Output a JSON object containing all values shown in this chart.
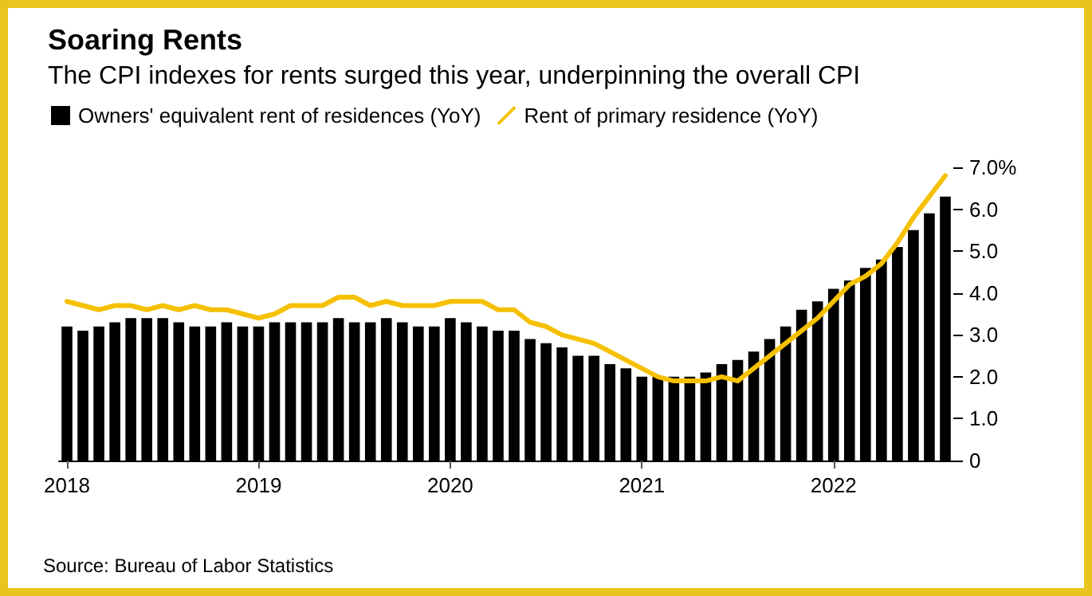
{
  "chart_data": {
    "type": "bar",
    "title": "Soaring Rents",
    "subtitle": "The CPI indexes for rents surged this year, underpinning the overall CPI",
    "categories": [
      "2018",
      null,
      null,
      null,
      null,
      null,
      null,
      null,
      null,
      null,
      null,
      null,
      "2019",
      null,
      null,
      null,
      null,
      null,
      null,
      null,
      null,
      null,
      null,
      null,
      "2020",
      null,
      null,
      null,
      null,
      null,
      null,
      null,
      null,
      null,
      null,
      null,
      "2021",
      null,
      null,
      null,
      null,
      null,
      null,
      null,
      null,
      null,
      null,
      null,
      "2022",
      null,
      null,
      null,
      null,
      null,
      null,
      null
    ],
    "series": [
      {
        "name": "Owners' equivalent rent of residences (YoY)",
        "color": "#000000",
        "values": [
          3.2,
          3.1,
          3.2,
          3.3,
          3.4,
          3.4,
          3.4,
          3.3,
          3.2,
          3.2,
          3.3,
          3.2,
          3.2,
          3.3,
          3.3,
          3.3,
          3.3,
          3.4,
          3.3,
          3.3,
          3.4,
          3.3,
          3.2,
          3.2,
          3.4,
          3.3,
          3.2,
          3.1,
          3.1,
          2.9,
          2.8,
          2.7,
          2.5,
          2.5,
          2.3,
          2.2,
          2.0,
          2.0,
          2.0,
          2.0,
          2.1,
          2.3,
          2.4,
          2.6,
          2.9,
          3.2,
          3.6,
          3.8,
          4.1,
          4.3,
          4.6,
          4.8,
          5.1,
          5.5,
          5.9,
          6.3
        ]
      },
      {
        "name": "Rent of primary residence (YoY)",
        "type": "line",
        "color": "#f5c000",
        "marker": "none",
        "values": [
          3.8,
          3.7,
          3.6,
          3.7,
          3.7,
          3.6,
          3.7,
          3.6,
          3.7,
          3.6,
          3.6,
          3.5,
          3.4,
          3.5,
          3.7,
          3.7,
          3.7,
          3.9,
          3.9,
          3.7,
          3.8,
          3.7,
          3.7,
          3.7,
          3.8,
          3.8,
          3.8,
          3.6,
          3.6,
          3.3,
          3.2,
          3.0,
          2.9,
          2.8,
          2.6,
          2.4,
          2.2,
          2.0,
          1.9,
          1.9,
          1.9,
          2.0,
          1.9,
          2.2,
          2.5,
          2.8,
          3.1,
          3.4,
          3.8,
          4.2,
          4.4,
          4.7,
          5.2,
          5.8,
          6.3,
          6.8
        ]
      }
    ],
    "ylim": [
      0,
      7
    ],
    "yticks": [
      0,
      {
        "value": 1,
        "label": "1.0"
      },
      {
        "value": 2,
        "label": "2.0"
      },
      {
        "value": 3,
        "label": "3.0"
      },
      {
        "value": 4,
        "label": "4.0"
      },
      {
        "value": 5,
        "label": "5.0"
      },
      {
        "value": 6,
        "label": "6.0"
      },
      {
        "value": 7,
        "label": "7.0%"
      }
    ],
    "grid": false,
    "legend": "top left",
    "annotations": [
      "Source: Bureau of Labor Statistics"
    ]
  }
}
